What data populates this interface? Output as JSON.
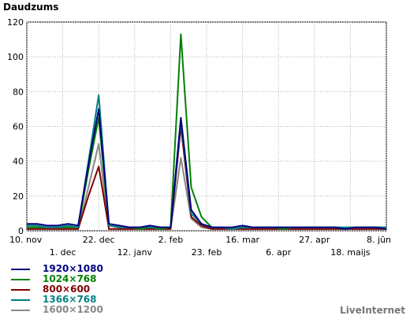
{
  "chart_data": {
    "type": "line",
    "ylabel": "Daudzums",
    "ylim": [
      0,
      120
    ],
    "yticks": [
      0,
      20,
      40,
      60,
      80,
      100,
      120
    ],
    "grid": true,
    "x_start_label": "10. nov",
    "x_end_label": "8. jūn",
    "x_tick_labels_row1": [
      "10. nov",
      "22. dec",
      "2. feb",
      "16. mar",
      "27. apr",
      "8. jūn"
    ],
    "x_tick_labels_row2": [
      "1. dec",
      "12. janv",
      "23. feb",
      "6. apr",
      "18. maijs"
    ],
    "series": [
      {
        "name": "1920×1080",
        "color": "#000080",
        "values": [
          4,
          4,
          3,
          3,
          4,
          3,
          38,
          70,
          4,
          3,
          2,
          2,
          3,
          2,
          2,
          65,
          12,
          4,
          2,
          2,
          2,
          3,
          2,
          2,
          2,
          2,
          2,
          2,
          2,
          2,
          2,
          1,
          2,
          2,
          2,
          1
        ]
      },
      {
        "name": "1024×768",
        "color": "#008000",
        "values": [
          2,
          2,
          2,
          2,
          2,
          2,
          35,
          65,
          3,
          2,
          2,
          1,
          2,
          1,
          2,
          113,
          25,
          8,
          2,
          2,
          1,
          2,
          2,
          2,
          2,
          1,
          2,
          2,
          2,
          2,
          2,
          1,
          2,
          2,
          2,
          2
        ]
      },
      {
        "name": "800×600",
        "color": "#800000",
        "values": [
          1,
          1,
          1,
          1,
          1,
          1,
          20,
          37,
          1,
          1,
          1,
          1,
          1,
          1,
          1,
          60,
          8,
          3,
          1,
          1,
          1,
          1,
          1,
          1,
          1,
          1,
          1,
          1,
          1,
          1,
          1,
          1,
          1,
          1,
          1,
          1
        ]
      },
      {
        "name": "1366×768",
        "color": "#008080",
        "values": [
          3,
          3,
          2,
          2,
          3,
          2,
          40,
          78,
          3,
          2,
          2,
          2,
          2,
          2,
          2,
          63,
          10,
          4,
          2,
          2,
          1,
          2,
          2,
          2,
          2,
          2,
          2,
          2,
          2,
          2,
          2,
          2,
          2,
          2,
          2,
          2
        ]
      },
      {
        "name": "1600×1200",
        "color": "#888888",
        "values": [
          1,
          1,
          1,
          1,
          1,
          1,
          25,
          50,
          1,
          1,
          1,
          1,
          1,
          1,
          1,
          42,
          7,
          2,
          1,
          1,
          1,
          1,
          1,
          1,
          1,
          1,
          1,
          1,
          1,
          1,
          1,
          1,
          1,
          1,
          1,
          1
        ]
      }
    ]
  },
  "brand": "LiveInternet"
}
